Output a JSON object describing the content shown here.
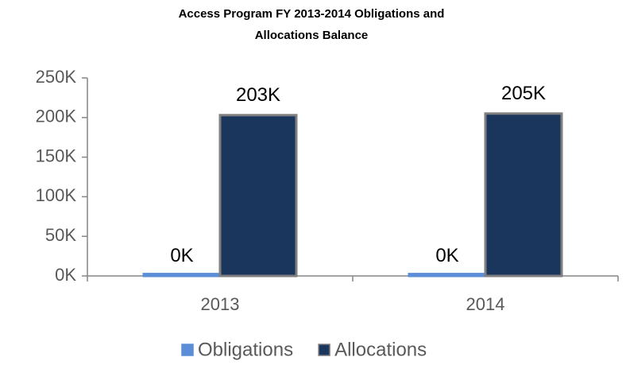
{
  "chart_data": {
    "type": "bar",
    "title": [
      "Access Program FY 2013-2014 Obligations and",
      "Allocations Balance"
    ],
    "categories": [
      "2013",
      "2014"
    ],
    "series": [
      {
        "name": "Obligations",
        "color": "#5b8ed6",
        "values": [
          400,
          400
        ],
        "value_labels": [
          "0K",
          "0K"
        ]
      },
      {
        "name": "Allocations",
        "color": "#1b365d",
        "values": [
          203000,
          205000
        ],
        "value_labels": [
          "203K",
          "205K"
        ]
      }
    ],
    "ylim": [
      0,
      250000
    ],
    "yticks": [
      {
        "value": 0,
        "label": "0K"
      },
      {
        "value": 50000,
        "label": "50K"
      },
      {
        "value": 100000,
        "label": "100K"
      },
      {
        "value": 150000,
        "label": "150K"
      },
      {
        "value": 200000,
        "label": "200K"
      },
      {
        "value": 250000,
        "label": "250K"
      }
    ],
    "legend": "bottom"
  }
}
